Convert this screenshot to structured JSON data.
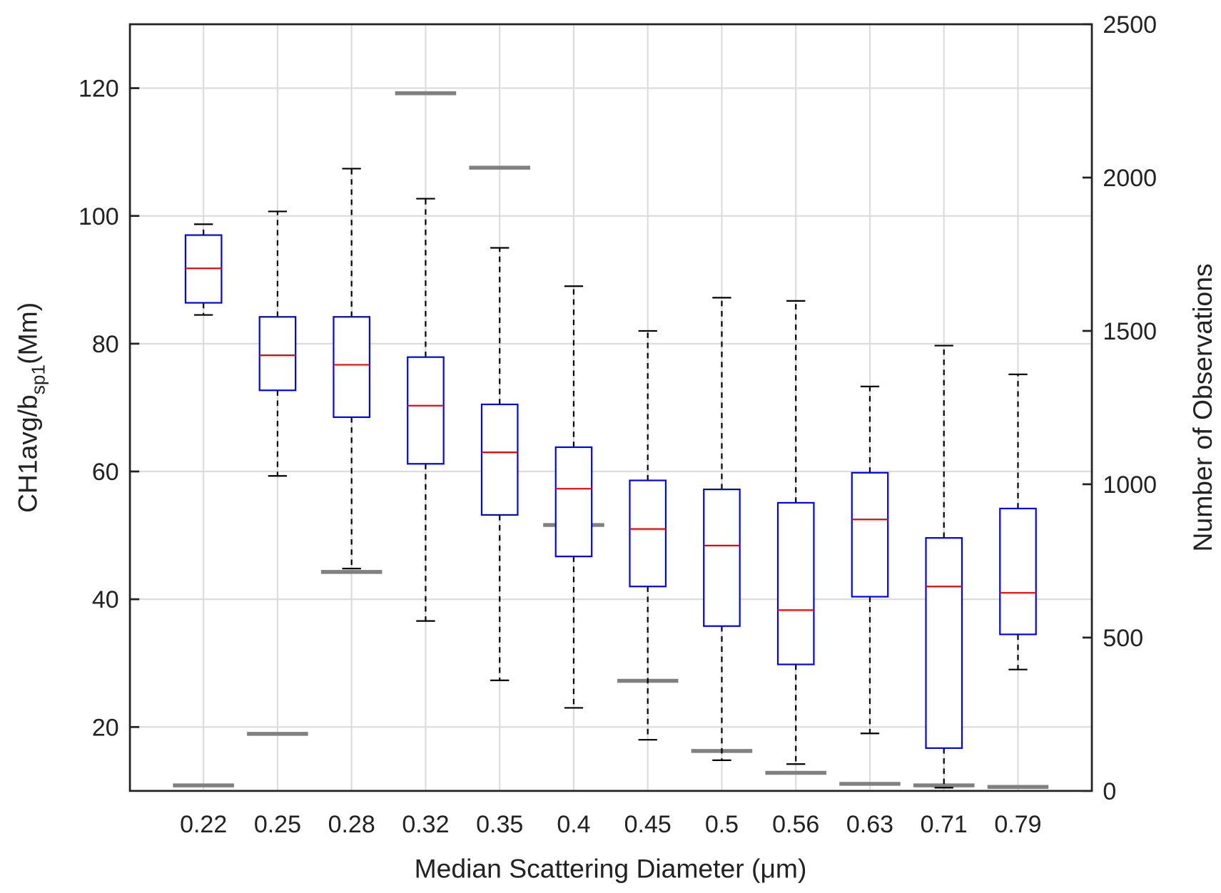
{
  "chart_data": {
    "type": "box",
    "xlabel": "Median Scattering Diameter (μm)",
    "ylabel_main": "CH1avg/b",
    "ylabel_sub": "sp1",
    "ylabel_tail": "(Mm)",
    "y2label": "Number of Observations",
    "ylim": [
      10,
      130
    ],
    "y2lim": [
      0,
      2500
    ],
    "yticks": [
      20,
      40,
      60,
      80,
      100,
      120
    ],
    "y2ticks": [
      0,
      500,
      1000,
      1500,
      2000,
      2500
    ],
    "grid": true,
    "categories": [
      "0.22",
      "0.25",
      "0.28",
      "0.32",
      "0.35",
      "0.4",
      "0.45",
      "0.5",
      "0.56",
      "0.63",
      "0.71",
      "0.79"
    ],
    "boxes": [
      {
        "low": 84.5,
        "q1": 86.4,
        "median": 91.8,
        "q3": 97.0,
        "high": 98.7
      },
      {
        "low": 59.3,
        "q1": 72.7,
        "median": 78.2,
        "q3": 84.2,
        "high": 100.7
      },
      {
        "low": 44.8,
        "q1": 68.5,
        "median": 76.7,
        "q3": 84.2,
        "high": 107.4
      },
      {
        "low": 36.6,
        "q1": 61.2,
        "median": 70.3,
        "q3": 77.9,
        "high": 102.7
      },
      {
        "low": 27.3,
        "q1": 53.2,
        "median": 63.0,
        "q3": 70.5,
        "high": 95.0
      },
      {
        "low": 23.0,
        "q1": 46.7,
        "median": 57.3,
        "q3": 63.8,
        "high": 89.0
      },
      {
        "low": 18.0,
        "q1": 42.0,
        "median": 51.0,
        "q3": 58.6,
        "high": 82.0
      },
      {
        "low": 14.8,
        "q1": 35.8,
        "median": 48.4,
        "q3": 57.2,
        "high": 87.2
      },
      {
        "low": 14.2,
        "q1": 29.8,
        "median": 38.3,
        "q3": 55.1,
        "high": 86.7
      },
      {
        "low": 19.0,
        "q1": 40.4,
        "median": 52.5,
        "q3": 59.8,
        "high": 73.3
      },
      {
        "low": 10.5,
        "q1": 16.7,
        "median": 42.0,
        "q3": 49.6,
        "high": 79.7
      },
      {
        "low": 29.0,
        "q1": 34.5,
        "median": 41.0,
        "q3": 54.2,
        "high": 75.2
      }
    ],
    "observations": [
      13,
      181,
      709,
      2270,
      2027,
      862,
      354,
      125,
      54,
      18,
      13,
      8
    ],
    "colors": {
      "box": "#0000ff",
      "median": "#ff0000",
      "whisker": "#000000",
      "count": "#808080",
      "grid": "#dcdcdc"
    }
  }
}
